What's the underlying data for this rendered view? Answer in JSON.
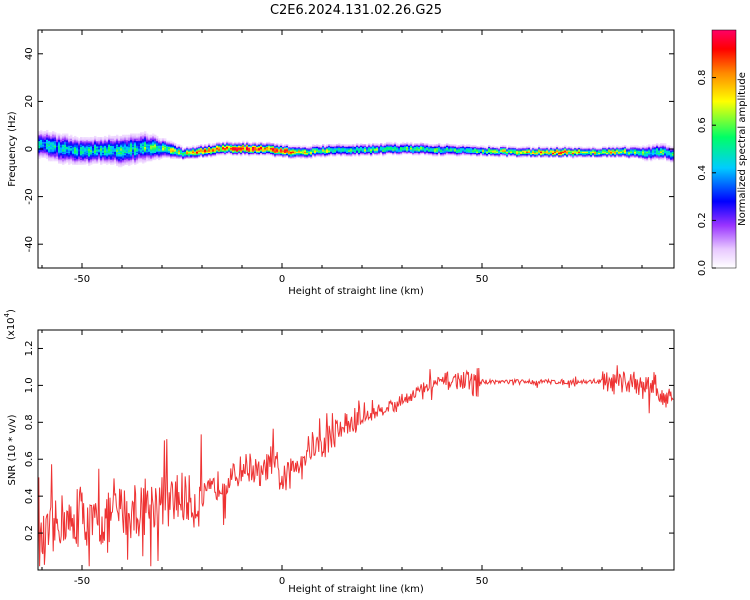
{
  "figure": {
    "title": "C2E6.2024.131.02.26.G25"
  },
  "chart_data": [
    {
      "type": "heatmap",
      "xlabel": "Height of straight line (km)",
      "ylabel": "Frequency (Hz)",
      "xlim": [
        -61,
        98
      ],
      "ylim": [
        -50,
        50
      ],
      "x_ticks": [
        "-50",
        "0",
        "50"
      ],
      "y_ticks": [
        "40",
        "20",
        "0",
        "-20",
        "-40"
      ],
      "x_tick_values": [
        -50,
        0,
        50
      ],
      "y_tick_values": [
        40,
        20,
        0,
        -20,
        -40
      ],
      "colorbar": {
        "label": "Normalized spectral amplitude",
        "range": [
          0,
          1
        ],
        "ticks": [
          "0.0",
          "0.2",
          "0.4",
          "0.6",
          "0.8"
        ],
        "tick_values": [
          0.0,
          0.2,
          0.4,
          0.6,
          0.8
        ],
        "colormap": [
          "#ffffff",
          "#e8c8ff",
          "#9933ff",
          "#0000ff",
          "#00ccff",
          "#00ff66",
          "#ffff00",
          "#ff8800",
          "#ff0000",
          "#ff0066"
        ]
      },
      "ridge": {
        "x": [
          -61,
          -55,
          -50,
          -45,
          -40,
          -35,
          -30,
          -25,
          -20,
          -15,
          -10,
          -5,
          0,
          5,
          10,
          20,
          30,
          40,
          50,
          60,
          70,
          80,
          88,
          92,
          95,
          98
        ],
        "frequency": [
          2,
          0,
          -1,
          -0.5,
          -1,
          0.5,
          0,
          -2,
          -1,
          0,
          0,
          0,
          -1,
          -1.5,
          -1,
          -0.5,
          0,
          -0.5,
          -1,
          -1.5,
          -1.5,
          -1.5,
          -1.5,
          -2,
          -1,
          -3
        ],
        "amplitude": [
          0.45,
          0.45,
          0.5,
          0.5,
          0.5,
          0.5,
          0.6,
          0.65,
          0.8,
          0.85,
          0.9,
          0.95,
          0.8,
          0.7,
          0.6,
          0.55,
          0.55,
          0.55,
          0.6,
          0.7,
          0.75,
          0.7,
          0.6,
          0.5,
          0.55,
          0.45
        ],
        "spread_hz": [
          7,
          8,
          7,
          7,
          8,
          8,
          5,
          3,
          3,
          3,
          3,
          3,
          3,
          3,
          3,
          3,
          3,
          3,
          2.5,
          2.5,
          2.5,
          2.5,
          3,
          4,
          4,
          4
        ]
      }
    },
    {
      "type": "line",
      "xlabel": "Height of straight line (km)",
      "ylabel": "SNR (10 * v/v)",
      "y_multiplier": "(x10",
      "y_multiplier_exp": "4",
      "y_multiplier_close": ")",
      "xlim": [
        -61,
        98
      ],
      "ylim": [
        0,
        1.3
      ],
      "x_ticks": [
        "-50",
        "0",
        "50"
      ],
      "y_ticks": [
        "0.2",
        "0.4",
        "0.6",
        "0.8",
        "1.0",
        "1.2"
      ],
      "x_tick_values": [
        -50,
        0,
        50
      ],
      "y_tick_values": [
        0.2,
        0.4,
        0.6,
        0.8,
        1.0,
        1.2
      ],
      "line_color": "#ee3333",
      "series": [
        {
          "x": [
            -61,
            -58,
            -55,
            -52,
            -50,
            -48,
            -45,
            -42,
            -40,
            -38,
            -35,
            -32,
            -30,
            -28,
            -25,
            -22,
            -20,
            -18,
            -15,
            -12,
            -10,
            -8,
            -5,
            -3,
            0,
            2,
            5,
            8,
            10,
            12,
            15,
            18,
            20,
            25,
            30,
            35,
            40,
            45,
            50,
            55,
            60,
            65,
            70,
            75,
            80,
            85,
            88,
            90,
            93,
            95,
            98
          ],
          "y": [
            0.12,
            0.2,
            0.28,
            0.22,
            0.3,
            0.24,
            0.26,
            0.3,
            0.33,
            0.3,
            0.32,
            0.36,
            0.38,
            0.35,
            0.4,
            0.36,
            0.38,
            0.42,
            0.48,
            0.5,
            0.55,
            0.56,
            0.5,
            0.6,
            0.48,
            0.52,
            0.62,
            0.68,
            0.66,
            0.72,
            0.78,
            0.8,
            0.82,
            0.87,
            0.92,
            0.98,
            1.02,
            1.03,
            1.02,
            1.02,
            1.02,
            1.02,
            1.02,
            1.02,
            1.02,
            1.0,
            1.03,
            0.98,
            1.02,
            0.92,
            0.98
          ]
        }
      ]
    }
  ]
}
